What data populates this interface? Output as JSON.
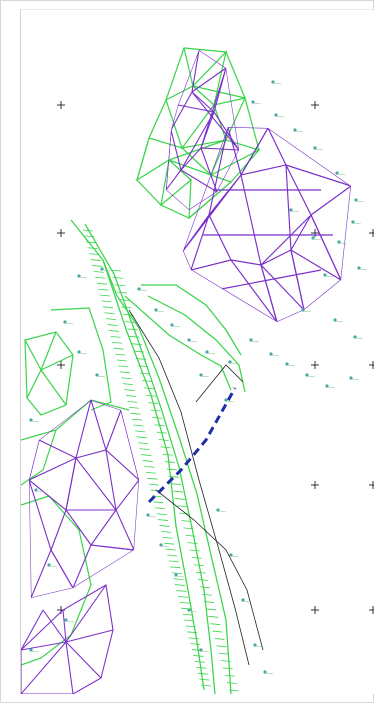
{
  "view": {
    "background": "#ffffff",
    "frame_border": "#d7d7d7"
  },
  "legend": [],
  "colors": {
    "green_mesh": "#39d44a",
    "purple_mesh": "#7b2fc9",
    "blue_dash": "#1d2ea6",
    "survey_point": "#48a8a8",
    "grid_mark": "#202020"
  },
  "grid_marks": [
    {
      "x": 0,
      "y": 0
    },
    {
      "x": 1,
      "y": 0
    },
    {
      "x": 0,
      "y": 1
    },
    {
      "x": 1,
      "y": 1
    },
    {
      "x": 2,
      "y": 1
    },
    {
      "x": 0,
      "y": 2
    },
    {
      "x": 1,
      "y": 2
    },
    {
      "x": 2,
      "y": 2
    },
    {
      "x": 1,
      "y": 3
    },
    {
      "x": 2,
      "y": 3
    },
    {
      "x": 0,
      "y": 4
    },
    {
      "x": 1,
      "y": 4
    },
    {
      "x": 2,
      "y": 4
    }
  ]
}
